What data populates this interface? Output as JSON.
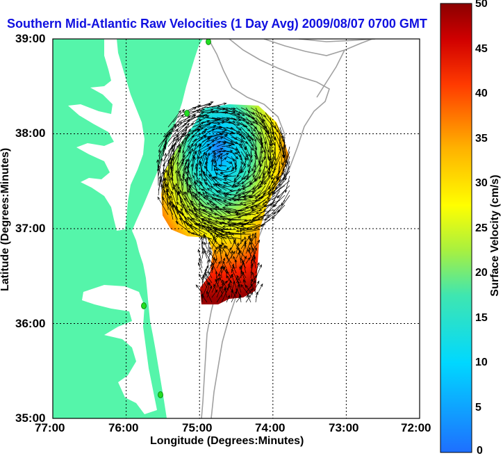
{
  "title": "Southern Mid-Atlantic Raw Velocities (1 Day Avg) 2009/08/07 0700 GMT",
  "axes": {
    "xlabel": "Longitude (Degrees:Minutes)",
    "ylabel": "Latitude (Degrees:Minutes)",
    "xticks": [
      "77:00",
      "76:00",
      "75:00",
      "74:00",
      "73:00",
      "72:00"
    ],
    "yticks": [
      "39:00",
      "38:00",
      "37:00",
      "36:00",
      "35:00"
    ],
    "xlim": [
      -77,
      -72
    ],
    "ylim": [
      35,
      39
    ],
    "grid": "dotted"
  },
  "colorbar": {
    "label": "Surface Velocity (cm/s)",
    "ticks": [
      "50",
      "45",
      "40",
      "35",
      "30",
      "25",
      "20",
      "15",
      "10",
      "5",
      "0"
    ],
    "range": [
      0,
      50
    ],
    "colors": [
      "#1e6fff",
      "#00d8ff",
      "#3fe6b0",
      "#a8f040",
      "#ffff00",
      "#ffb000",
      "#ff4000",
      "#c00000",
      "#8b0000"
    ]
  },
  "colors": {
    "land": "#55f5aa",
    "title": "#1010e0",
    "bathymetry": "#a0a0a0",
    "vectors": "#000000",
    "stations": "#22dd22"
  },
  "chart_data": {
    "type": "vector-field map",
    "field": "surface velocity (cm/s)",
    "speed_range_cm_s": [
      0,
      50
    ],
    "region_lon": [
      -75.6,
      -73.8
    ],
    "region_lat": [
      36.2,
      38.4
    ],
    "low_speed_core": {
      "lon": -74.7,
      "lat": 37.9,
      "speed_cm_s": 8
    },
    "edge_speed_cm_s": 50
  }
}
